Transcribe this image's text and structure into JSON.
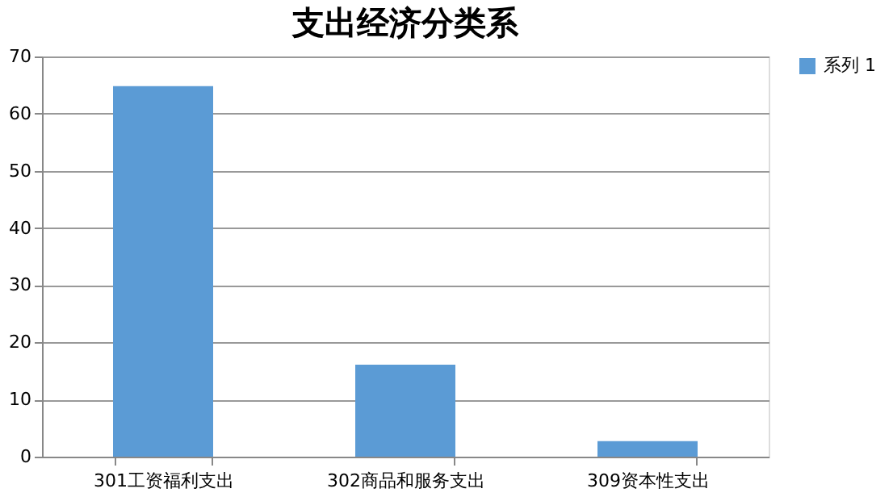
{
  "chart_data": {
    "type": "bar",
    "title": "支出经济分类系",
    "categories": [
      "301工资福利支出",
      "302商品和服务支出",
      "309资本性支出"
    ],
    "series": [
      {
        "name": "系列 1",
        "color": "#5b9bd5",
        "values": [
          64.8,
          16.1,
          2.7
        ]
      }
    ],
    "ylim": [
      0,
      70
    ],
    "yticks": [
      0,
      10,
      20,
      30,
      40,
      50,
      60,
      70
    ],
    "grid": "y",
    "legend": "right"
  }
}
